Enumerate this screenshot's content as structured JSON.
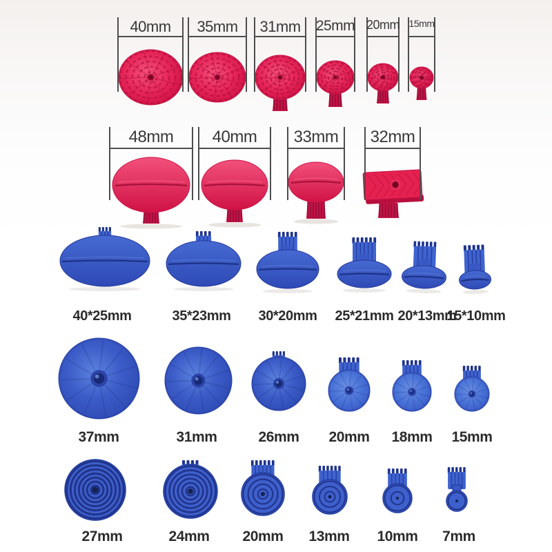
{
  "colors": {
    "red_tab": "#e7275a",
    "red_tab_dark": "#b30f3f",
    "blue_tab": "#3553c2",
    "blue_tab_dark": "#1c2d80",
    "label_text": "#2b2b2b",
    "bracket_line": "#4d4d4d"
  },
  "rows": [
    {
      "name": "red round webbed glue tabs",
      "labels": [
        "40mm",
        "35mm",
        "31mm",
        "25mm",
        "20mm",
        "15mm"
      ]
    },
    {
      "name": "red oval glue tabs",
      "labels": [
        "48mm",
        "40mm",
        "33mm",
        "32mm"
      ]
    },
    {
      "name": "blue oval glue tabs with gear stems",
      "labels": [
        "40*25mm",
        "35*23mm",
        "30*20mm",
        "25*21mm",
        "20*13mm",
        "15*10mm"
      ]
    },
    {
      "name": "blue round disc glue tabs",
      "labels": [
        "37mm",
        "31mm",
        "26mm",
        "20mm",
        "18mm",
        "15mm"
      ]
    },
    {
      "name": "blue ringed glue tabs",
      "labels": [
        "27mm",
        "24mm",
        "20mm",
        "13mm",
        "10mm",
        "7mm"
      ]
    }
  ]
}
